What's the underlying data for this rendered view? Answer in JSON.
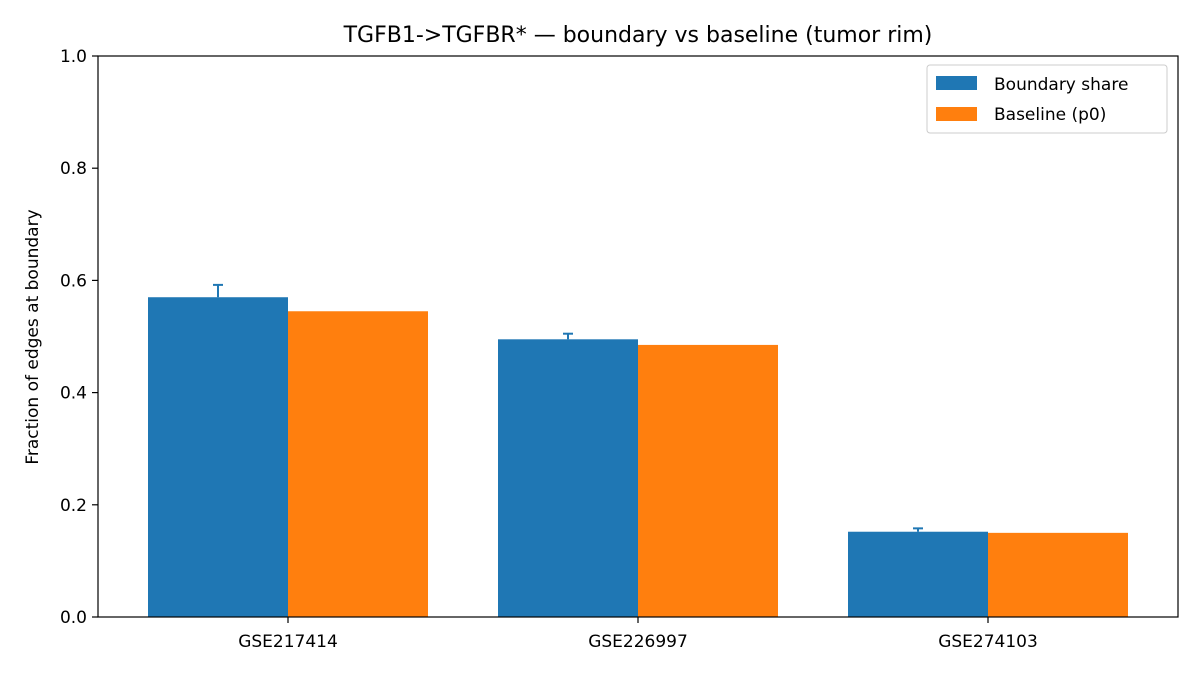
{
  "chart_data": {
    "type": "bar",
    "title": "TGFB1->TGFBR* — boundary vs baseline (tumor rim)",
    "xlabel": "",
    "ylabel": "Fraction of edges at boundary",
    "ylim": [
      0,
      1.0
    ],
    "yticks": [
      "0.0",
      "0.2",
      "0.4",
      "0.6",
      "0.8",
      "1.0"
    ],
    "categories": [
      "GSE217414",
      "GSE226997",
      "GSE274103"
    ],
    "series": [
      {
        "name": "Boundary share",
        "color": "#1f77b4",
        "values": [
          0.57,
          0.495,
          0.152
        ],
        "errors": [
          0.022,
          0.01,
          0.006
        ]
      },
      {
        "name": "Baseline (p0)",
        "color": "#ff7f0e",
        "values": [
          0.545,
          0.485,
          0.15
        ]
      }
    ],
    "grid": false,
    "legend_position": "top-right"
  }
}
